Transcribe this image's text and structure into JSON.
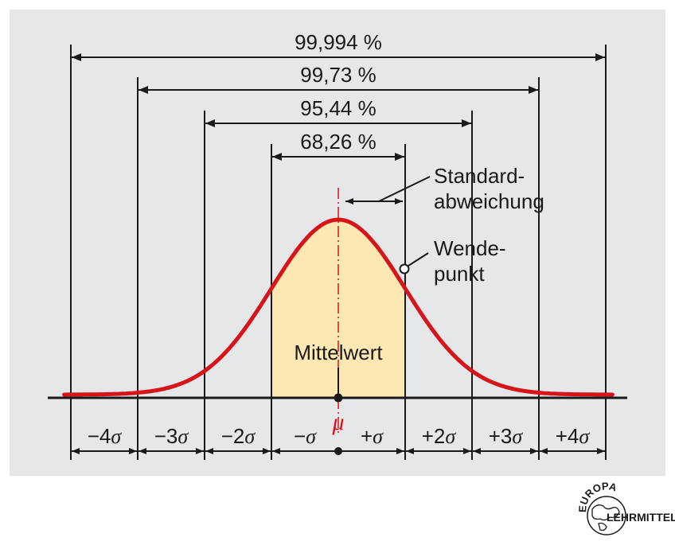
{
  "colors": {
    "panel": "#e6e7e8",
    "shade": "#fde7b3",
    "curve": "#d7141a",
    "line": "#1a1a1a"
  },
  "coverage": [
    {
      "label": "99,994 %",
      "from_sigma": -4,
      "to_sigma": 4
    },
    {
      "label": "99,73 %",
      "from_sigma": -3,
      "to_sigma": 3
    },
    {
      "label": "95,44 %",
      "from_sigma": -2,
      "to_sigma": 2
    },
    {
      "label": "68,26 %",
      "from_sigma": -1,
      "to_sigma": 1
    }
  ],
  "annotations": {
    "std_dev_line1": "Standard-",
    "std_dev_line2": "abweichung",
    "inflection_line1": "Wende-",
    "inflection_line2": "punkt",
    "mean": "Mittelwert"
  },
  "sigma_labels": [
    {
      "sign": "−4",
      "sym": "σ"
    },
    {
      "sign": "−3",
      "sym": "σ"
    },
    {
      "sign": "−2",
      "sym": "σ"
    },
    {
      "sign": "−",
      "sym": "σ"
    },
    {
      "sign": "+",
      "sym": "σ"
    },
    {
      "sign": "+2",
      "sym": "σ"
    },
    {
      "sign": "+3",
      "sym": "σ"
    },
    {
      "sign": "+4",
      "sym": "σ"
    }
  ],
  "mu_symbol": "μ",
  "logo": {
    "top": "EUROPA",
    "bottom": "LEHRMITTEL"
  }
}
